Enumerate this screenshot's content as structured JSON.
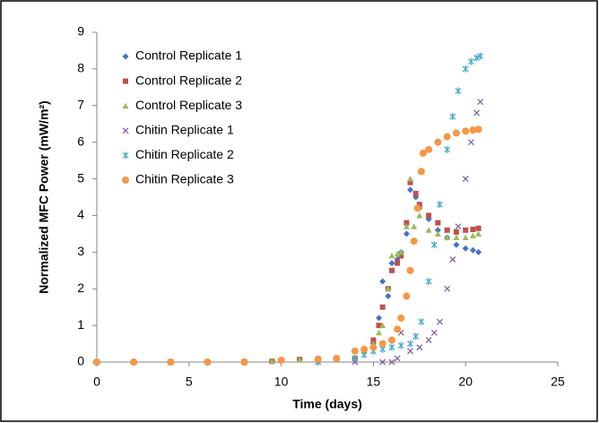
{
  "chart_data": {
    "type": "scatter",
    "x_label": "Time (days)",
    "y_label": "Normalized MFC Power (mW/m²)",
    "xlim": [
      0,
      25
    ],
    "xticks": [
      0,
      5,
      10,
      15,
      20,
      25
    ],
    "ylim": [
      0,
      9
    ],
    "yticks": [
      0,
      1,
      2,
      3,
      4,
      5,
      6,
      7,
      8,
      9
    ],
    "grid": false,
    "legend": "upper-left",
    "series": [
      {
        "name": "Control Replicate 1",
        "color": "#4472c4",
        "marker": "diamond",
        "x": [
          0,
          2,
          4,
          6,
          8,
          9.5,
          10,
          11,
          12,
          13,
          14,
          14.5,
          15,
          15.3,
          15.5,
          15.8,
          16,
          16.3,
          16.5,
          16.8,
          17,
          17.3,
          17.5,
          18,
          18.5,
          19,
          19.5,
          20,
          20.4,
          20.7
        ],
        "values": [
          0,
          0,
          0,
          0,
          0,
          0.02,
          0.05,
          0.07,
          0.08,
          0.08,
          0.1,
          0.3,
          0.5,
          1.2,
          2.2,
          1.8,
          2.7,
          2.8,
          3.0,
          3.5,
          4.7,
          4.5,
          4.2,
          3.9,
          3.6,
          3.4,
          3.2,
          3.1,
          3.05,
          3.0
        ]
      },
      {
        "name": "Control Replicate 2",
        "color": "#c0504d",
        "marker": "square",
        "x": [
          0,
          2,
          4,
          6,
          8,
          9.5,
          10,
          11,
          12,
          13,
          14,
          14.5,
          15,
          15.3,
          15.5,
          15.8,
          16,
          16.3,
          16.5,
          16.8,
          17,
          17.3,
          17.5,
          18,
          18.5,
          19,
          19.5,
          20,
          20.4,
          20.7
        ],
        "values": [
          0,
          0,
          0,
          0,
          0,
          0.02,
          0.05,
          0.07,
          0.08,
          0.08,
          0.1,
          0.3,
          0.6,
          1.0,
          1.5,
          2.0,
          2.5,
          2.7,
          2.9,
          3.8,
          4.9,
          4.6,
          4.3,
          4.0,
          3.8,
          3.6,
          3.55,
          3.6,
          3.62,
          3.65
        ]
      },
      {
        "name": "Control Replicate 3",
        "color": "#9bbb59",
        "marker": "triangle",
        "x": [
          0,
          2,
          4,
          6,
          8,
          9.5,
          10,
          11,
          12,
          13,
          14,
          14.5,
          15,
          15.3,
          15.5,
          15.8,
          16,
          16.3,
          16.5,
          16.8,
          17,
          17.2,
          17.5,
          18,
          18.5,
          19,
          19.5,
          20,
          20.4,
          20.7
        ],
        "values": [
          0,
          0,
          0,
          0,
          0,
          0.02,
          0.05,
          0.07,
          0.08,
          0.08,
          0.1,
          0.3,
          0.5,
          0.8,
          1.0,
          2.0,
          2.9,
          2.95,
          3.0,
          3.7,
          5.0,
          3.7,
          4.0,
          3.6,
          3.5,
          3.4,
          3.4,
          3.4,
          3.45,
          3.5
        ]
      },
      {
        "name": "Chitin Replicate 1",
        "color": "#8064a2",
        "marker": "x",
        "x": [
          0,
          4,
          8,
          12,
          14,
          15.5,
          16,
          16.3,
          16.5,
          17,
          17.5,
          18,
          18.3,
          18.6,
          19,
          19.3,
          19.6,
          20,
          20.3,
          20.6,
          20.8
        ],
        "values": [
          0,
          0,
          0,
          0,
          0,
          0,
          0,
          0.1,
          0.8,
          0.3,
          0.4,
          0.6,
          0.8,
          1.1,
          2.0,
          2.8,
          3.7,
          5.0,
          6.0,
          6.8,
          7.1
        ]
      },
      {
        "name": "Chitin Replicate 2",
        "color": "#4bacc6",
        "marker": "star",
        "x": [
          0,
          4,
          8,
          12,
          14,
          14.5,
          15,
          15.5,
          16,
          16.5,
          17,
          17.3,
          17.6,
          18,
          18.3,
          18.6,
          19,
          19.3,
          19.6,
          20,
          20.3,
          20.6,
          20.8
        ],
        "values": [
          0,
          0,
          0,
          0,
          0.1,
          0.2,
          0.3,
          0.35,
          0.4,
          0.45,
          0.5,
          0.7,
          1.1,
          2.2,
          3.2,
          4.3,
          5.8,
          6.7,
          7.4,
          8.0,
          8.2,
          8.3,
          8.35
        ]
      },
      {
        "name": "Chitin Replicate 3",
        "color": "#f79646",
        "marker": "circle",
        "x": [
          0,
          2,
          4,
          6,
          8,
          10,
          12,
          13,
          14,
          14.5,
          15,
          15.5,
          16,
          16.3,
          16.5,
          16.8,
          17,
          17.2,
          17.4,
          17.6,
          17.7,
          18,
          18.5,
          19,
          19.5,
          20,
          20.4,
          20.7
        ],
        "values": [
          0,
          0,
          0,
          0,
          0,
          0.05,
          0.08,
          0.1,
          0.3,
          0.35,
          0.4,
          0.5,
          0.6,
          0.9,
          1.2,
          1.8,
          2.5,
          3.3,
          4.2,
          5.2,
          5.7,
          5.8,
          6.0,
          6.15,
          6.25,
          6.3,
          6.33,
          6.35
        ]
      }
    ]
  }
}
